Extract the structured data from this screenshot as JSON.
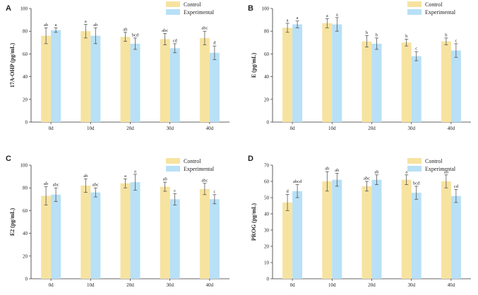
{
  "chart_data": [
    {
      "type": "bar",
      "panel": "A",
      "ylabel": "17A-OHP (pg/mL)",
      "ylim": [
        0,
        100
      ],
      "yticks": [
        0,
        20,
        40,
        60,
        80,
        100
      ],
      "categories": [
        "0d",
        "10d",
        "20d",
        "30d",
        "40d"
      ],
      "legend": "top-right",
      "series": [
        {
          "name": "Control",
          "color": "#f7e3a0",
          "values": [
            76,
            80,
            75,
            73,
            74
          ],
          "errors": [
            7,
            6,
            4,
            5,
            6
          ],
          "labels": [
            "ab",
            "a",
            "ab",
            "abc",
            "abc"
          ]
        },
        {
          "name": "Experimental",
          "color": "#b8e0f6",
          "values": [
            81,
            76,
            69,
            65,
            61
          ],
          "errors": [
            2,
            7,
            5,
            4,
            6
          ],
          "labels": [
            "a",
            "ab",
            "bcd",
            "cd",
            "d"
          ]
        }
      ]
    },
    {
      "type": "bar",
      "panel": "B",
      "ylabel": "E (pg/mL)",
      "ylim": [
        0,
        100
      ],
      "yticks": [
        0,
        20,
        40,
        60,
        80,
        100
      ],
      "categories": [
        "0d",
        "10d",
        "20d",
        "30d",
        "40d"
      ],
      "legend": "top-right",
      "series": [
        {
          "name": "Control",
          "color": "#f7e3a0",
          "values": [
            83,
            87,
            71,
            70,
            71
          ],
          "errors": [
            4,
            4,
            5,
            3,
            3
          ],
          "labels": [
            "a",
            "a",
            "b",
            "b",
            "b"
          ]
        },
        {
          "name": "Experimental",
          "color": "#b8e0f6",
          "values": [
            86,
            86,
            69,
            58,
            63
          ],
          "errors": [
            3,
            6,
            5,
            4,
            6
          ],
          "labels": [
            "a",
            "a",
            "b",
            "c",
            "c"
          ]
        }
      ]
    },
    {
      "type": "bar",
      "panel": "C",
      "ylabel": "E2 (pg/mL)",
      "ylim": [
        0,
        100
      ],
      "yticks": [
        0,
        20,
        40,
        60,
        80,
        100
      ],
      "categories": [
        "0d",
        "10d",
        "20d",
        "30d",
        "40d"
      ],
      "legend": "top-right",
      "series": [
        {
          "name": "Control",
          "color": "#f7e3a0",
          "values": [
            73,
            82,
            84,
            81,
            79
          ],
          "errors": [
            8,
            6,
            4,
            4,
            5
          ],
          "labels": [
            "ab",
            "ab",
            "a",
            "ab",
            "abc"
          ]
        },
        {
          "name": "Experimental",
          "color": "#b8e0f6",
          "values": [
            74,
            76,
            85,
            70,
            70
          ],
          "errors": [
            6,
            4,
            7,
            5,
            4
          ],
          "labels": [
            "abc",
            "abc",
            "a",
            "c",
            "c"
          ]
        }
      ]
    },
    {
      "type": "bar",
      "panel": "D",
      "ylabel": "PROG (pg/mL)",
      "ylim": [
        0,
        70
      ],
      "yticks": [
        0,
        10,
        20,
        30,
        40,
        50,
        60,
        70
      ],
      "categories": [
        "0d",
        "10d",
        "20d",
        "30d",
        "40d"
      ],
      "legend": "top-right",
      "series": [
        {
          "name": "Control",
          "color": "#f7e3a0",
          "values": [
            47,
            60,
            57,
            61,
            60
          ],
          "errors": [
            5,
            6,
            3,
            3,
            4
          ],
          "labels": [
            "d",
            "ab",
            "abc",
            "a",
            "ab"
          ]
        },
        {
          "name": "Experimental",
          "color": "#b8e0f6",
          "values": [
            54,
            61,
            61,
            53,
            51
          ],
          "errors": [
            4,
            4,
            3,
            4,
            4
          ],
          "labels": [
            "abcd",
            "ab",
            "ab",
            "bcd",
            "cd"
          ]
        }
      ]
    }
  ]
}
